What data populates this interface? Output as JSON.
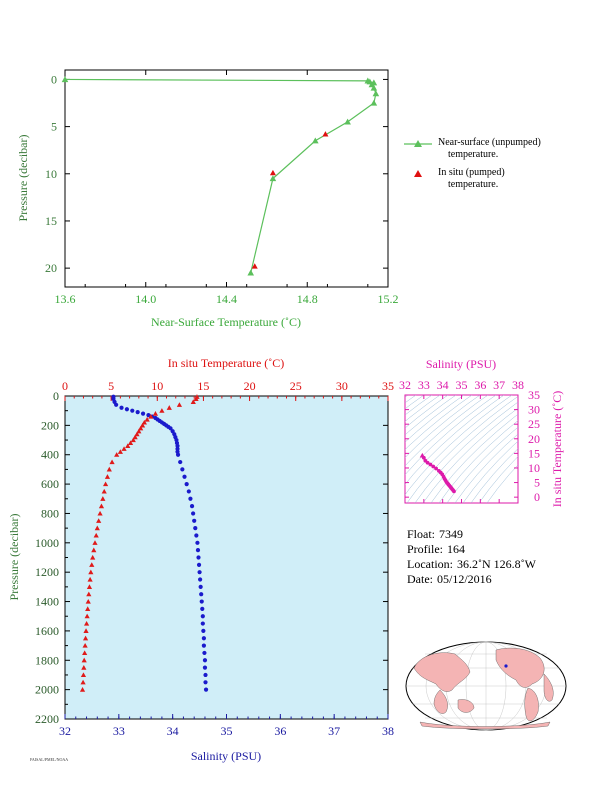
{
  "chart_data": [
    {
      "type": "line",
      "xlabel": "Near-Surface Temperature (˚C)",
      "ylabel": "Pressure (decibar)",
      "xlim": [
        13.6,
        15.2
      ],
      "ylim": [
        22,
        -1
      ],
      "xticks": [
        "13.6",
        "14.0",
        "14.4",
        "14.8",
        "15.2"
      ],
      "yticks": [
        "0",
        "5",
        "10",
        "15",
        "20"
      ],
      "colors": {
        "axis": "#4db84d",
        "line": "#5cc05c",
        "insitu": "#e01010"
      },
      "series": [
        {
          "name": "Near-surface (unpumped) temperature.",
          "x": [
            13.6,
            15.1,
            15.11,
            15.13,
            15.12,
            15.13,
            15.14,
            15.13,
            15.0,
            14.84,
            14.63,
            14.52
          ],
          "y": [
            0,
            0.15,
            0.25,
            0.35,
            0.55,
            0.9,
            1.5,
            2.5,
            4.5,
            6.5,
            10.5,
            20.5
          ]
        },
        {
          "name": "In situ (pumped) temperature.",
          "x": [
            14.63,
            14.89,
            14.54
          ],
          "y": [
            9.9,
            5.8,
            19.8
          ]
        }
      ]
    },
    {
      "type": "scatter",
      "ylabel": "Pressure (decibar)",
      "xlabel_bottom": "Salinity (PSU)",
      "xlabel_top": "In situ Temperature (˚C)",
      "ylim": [
        2200,
        0
      ],
      "sal_lim": [
        32,
        38
      ],
      "temp_lim": [
        0,
        35
      ],
      "yticks": [
        "0",
        "200",
        "400",
        "600",
        "800",
        "1000",
        "1200",
        "1400",
        "1600",
        "1800",
        "2000",
        "2200"
      ],
      "sal_ticks": [
        "32",
        "33",
        "34",
        "35",
        "36",
        "37",
        "38"
      ],
      "temp_ticks": [
        "0",
        "5",
        "10",
        "15",
        "20",
        "25",
        "30",
        "35"
      ],
      "colors": {
        "bg": "#d0eef8",
        "salinity": "#1a1acc",
        "temp": "#e01a1a",
        "temp_axis": "#dd1111",
        "sal_axis": "#1a1aa0"
      },
      "temperature": {
        "pressure": [
          5,
          20,
          40,
          60,
          80,
          100,
          120,
          140,
          160,
          180,
          200,
          220,
          240,
          260,
          280,
          300,
          320,
          340,
          360,
          380,
          400,
          450,
          500,
          550,
          600,
          650,
          700,
          750,
          800,
          850,
          900,
          950,
          1000,
          1050,
          1100,
          1150,
          1200,
          1250,
          1300,
          1350,
          1400,
          1450,
          1500,
          1550,
          1600,
          1650,
          1700,
          1750,
          1800,
          1850,
          1900,
          1950,
          2000
        ],
        "values": [
          14.3,
          14.2,
          13.9,
          12.4,
          11.3,
          10.5,
          9.8,
          9.3,
          8.9,
          8.6,
          8.4,
          8.2,
          8.0,
          7.8,
          7.6,
          7.4,
          7.1,
          6.8,
          6.4,
          6.0,
          5.6,
          5.1,
          4.8,
          4.6,
          4.4,
          4.25,
          4.1,
          3.95,
          3.8,
          3.65,
          3.5,
          3.38,
          3.25,
          3.12,
          3.0,
          2.9,
          2.8,
          2.72,
          2.65,
          2.58,
          2.52,
          2.46,
          2.4,
          2.34,
          2.28,
          2.23,
          2.18,
          2.13,
          2.08,
          2.04,
          2.0,
          1.96,
          1.9
        ]
      },
      "salinity": {
        "pressure": [
          5,
          20,
          40,
          60,
          80,
          90,
          100,
          110,
          120,
          130,
          140,
          150,
          160,
          170,
          180,
          190,
          200,
          210,
          220,
          240,
          260,
          280,
          300,
          320,
          340,
          360,
          380,
          400,
          450,
          500,
          550,
          600,
          650,
          700,
          750,
          800,
          850,
          900,
          950,
          1000,
          1050,
          1100,
          1150,
          1200,
          1250,
          1300,
          1350,
          1400,
          1450,
          1500,
          1550,
          1600,
          1650,
          1700,
          1750,
          1800,
          1850,
          1900,
          1950,
          2000
        ],
        "values": [
          32.9,
          32.9,
          32.92,
          32.95,
          33.05,
          33.15,
          33.25,
          33.35,
          33.45,
          33.55,
          33.62,
          33.68,
          33.72,
          33.76,
          33.8,
          33.84,
          33.88,
          33.92,
          33.96,
          34.0,
          34.03,
          34.05,
          34.07,
          34.08,
          34.09,
          34.09,
          34.09,
          34.1,
          34.14,
          34.18,
          34.22,
          34.26,
          34.3,
          34.33,
          34.36,
          34.38,
          34.4,
          34.42,
          34.44,
          34.46,
          34.47,
          34.48,
          34.49,
          34.5,
          34.51,
          34.52,
          34.53,
          34.54,
          34.55,
          34.56,
          34.56,
          34.57,
          34.58,
          34.58,
          34.59,
          34.6,
          34.6,
          34.61,
          34.61,
          34.62
        ]
      }
    },
    {
      "type": "scatter",
      "xlabel": "Salinity (PSU)",
      "ylabel": "In situ Temperature (˚C)",
      "xlim": [
        32,
        38
      ],
      "ylim": [
        -2,
        35
      ],
      "xticks": [
        "32",
        "33",
        "34",
        "35",
        "36",
        "37",
        "38"
      ],
      "yticks": [
        "0",
        "5",
        "10",
        "15",
        "20",
        "25",
        "30",
        "35"
      ],
      "color": "#dd1aaa",
      "salinity": [
        32.92,
        33.0,
        33.08,
        33.2,
        33.35,
        33.5,
        33.65,
        33.8,
        33.9,
        33.98,
        34.05,
        34.1,
        34.15,
        34.2,
        34.25,
        34.3,
        34.35,
        34.4,
        34.45,
        34.5,
        34.55,
        34.6
      ],
      "temperature": [
        14.3,
        13.5,
        12.5,
        11.8,
        11.2,
        10.5,
        9.8,
        9.0,
        8.4,
        7.8,
        7.0,
        6.3,
        5.8,
        5.2,
        4.8,
        4.4,
        4.0,
        3.6,
        3.2,
        2.8,
        2.4,
        2.0
      ]
    }
  ],
  "legend": {
    "near_surface": "Near-surface (unpumped)",
    "near_surface_2": "temperature.",
    "in_situ": "In situ (pumped)",
    "in_situ_2": "temperature."
  },
  "info": {
    "float_label": "Float:",
    "float_value": "7349",
    "profile_label": "Profile:",
    "profile_value": "164",
    "location_label": "Location:",
    "location_value": "36.2˚N  126.8˚W",
    "date_label": "Date:",
    "date_value": "05/12/2016"
  },
  "footer_text": "FAISAL/PMEL/NOAA"
}
